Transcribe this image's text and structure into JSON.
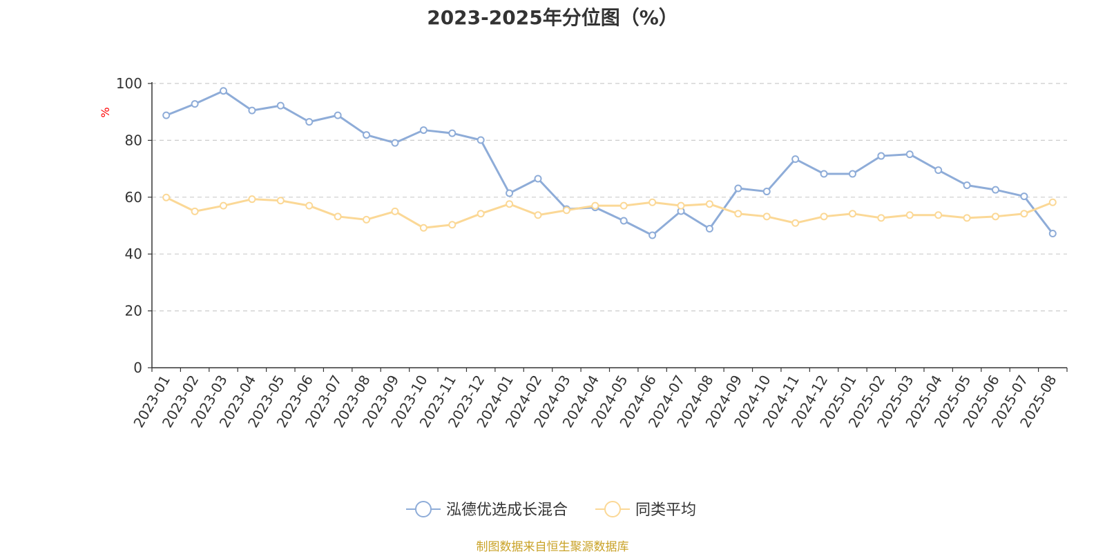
{
  "chart_data": {
    "type": "line",
    "title": "2023-2025年分位图（%）",
    "ylabel": "%",
    "ylim": [
      0,
      100
    ],
    "yticks": [
      0,
      20,
      40,
      60,
      80,
      100
    ],
    "grid": true,
    "legend_position": "bottom-center",
    "categories": [
      "2023-01",
      "2023-02",
      "2023-03",
      "2023-04",
      "2023-05",
      "2023-06",
      "2023-07",
      "2023-08",
      "2023-09",
      "2023-10",
      "2023-11",
      "2023-12",
      "2024-01",
      "2024-02",
      "2024-03",
      "2024-04",
      "2024-05",
      "2024-06",
      "2024-07",
      "2024-08",
      "2024-09",
      "2024-10",
      "2024-11",
      "2024-12",
      "2025-01",
      "2025-02",
      "2025-03",
      "2025-04",
      "2025-05",
      "2025-06",
      "2025-07",
      "2025-08"
    ],
    "series": [
      {
        "name": "泓德优选成长混合",
        "color": "#8eacd8",
        "values": [
          88.8,
          92.8,
          97.4,
          90.5,
          92.2,
          86.5,
          88.8,
          81.9,
          79.1,
          83.6,
          82.5,
          80.1,
          61.4,
          66.5,
          55.8,
          56.4,
          51.7,
          46.6,
          55.1,
          48.9,
          63.1,
          62.0,
          73.4,
          68.2,
          68.2,
          74.5,
          75.1,
          69.5,
          64.2,
          62.6,
          60.3,
          47.2
        ]
      },
      {
        "name": "同类平均",
        "color": "#fbd896",
        "values": [
          59.9,
          55.0,
          57.0,
          59.3,
          58.8,
          57.0,
          53.2,
          52.1,
          55.0,
          49.2,
          50.3,
          54.2,
          57.6,
          53.7,
          55.4,
          57.0,
          57.0,
          58.2,
          57.0,
          57.6,
          54.2,
          53.2,
          50.9,
          53.2,
          54.2,
          52.7,
          53.7,
          53.7,
          52.7,
          53.2,
          54.2,
          58.2
        ]
      }
    ]
  },
  "source_note": "制图数据来自恒生聚源数据库"
}
